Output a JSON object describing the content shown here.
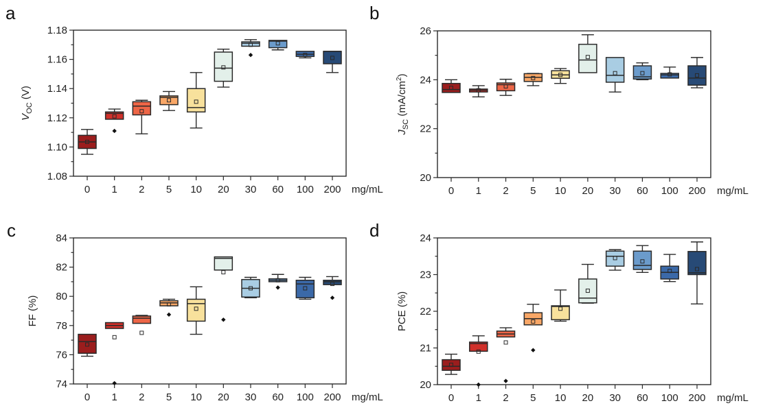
{
  "chart_data": [
    {
      "panel": "a",
      "type": "box",
      "categories": [
        "0",
        "1",
        "2",
        "5",
        "10",
        "20",
        "30",
        "60",
        "100",
        "200"
      ],
      "x_unit": "mg/mL",
      "ylabel_main": "V",
      "ylabel_sub": "OC",
      "ylabel_rest": " (V)",
      "ylim": [
        1.08,
        1.18
      ],
      "yticks": [
        1.08,
        1.1,
        1.12,
        1.14,
        1.16,
        1.18
      ],
      "ytick_labels": [
        "1.08",
        "1.10",
        "1.12",
        "1.14",
        "1.16",
        "1.18"
      ],
      "boxes": [
        {
          "wlo": 1.095,
          "q1": 1.099,
          "med": 1.1035,
          "q3": 1.108,
          "whi": 1.112,
          "mean": 1.1035,
          "outliers": []
        },
        {
          "wlo": null,
          "q1": 1.119,
          "med": 1.123,
          "q3": 1.124,
          "whi": 1.126,
          "mean": 1.121,
          "outliers": [
            1.111
          ]
        },
        {
          "wlo": 1.109,
          "q1": 1.122,
          "med": 1.128,
          "q3": 1.131,
          "whi": 1.132,
          "mean": 1.1245,
          "outliers": []
        },
        {
          "wlo": 1.125,
          "q1": 1.129,
          "med": 1.134,
          "q3": 1.135,
          "whi": 1.138,
          "mean": 1.132,
          "outliers": []
        },
        {
          "wlo": 1.113,
          "q1": 1.124,
          "med": 1.127,
          "q3": 1.14,
          "whi": 1.151,
          "mean": 1.131,
          "outliers": []
        },
        {
          "wlo": 1.141,
          "q1": 1.145,
          "med": 1.154,
          "q3": 1.165,
          "whi": 1.167,
          "mean": 1.1545,
          "outliers": []
        },
        {
          "wlo": null,
          "q1": 1.169,
          "med": 1.171,
          "q3": 1.172,
          "whi": 1.1735,
          "mean": 1.17,
          "outliers": [
            1.163
          ]
        },
        {
          "wlo": 1.1665,
          "q1": 1.168,
          "med": 1.1725,
          "q3": 1.173,
          "whi": null,
          "mean": 1.171,
          "outliers": []
        },
        {
          "wlo": 1.161,
          "q1": 1.162,
          "med": 1.1635,
          "q3": 1.1655,
          "whi": null,
          "mean": 1.163,
          "outliers": []
        },
        {
          "wlo": 1.151,
          "q1": 1.157,
          "med": 1.1655,
          "q3": 1.1655,
          "whi": null,
          "mean": 1.161,
          "outliers": []
        }
      ]
    },
    {
      "panel": "b",
      "type": "box",
      "categories": [
        "0",
        "1",
        "2",
        "5",
        "10",
        "20",
        "30",
        "60",
        "100",
        "200"
      ],
      "x_unit": "mg/mL",
      "ylabel_main": "J",
      "ylabel_sub": "SC",
      "ylabel_rest": " (mA/cm",
      "ylabel_sup": "2",
      "ylabel_end": ")",
      "ylim": [
        20,
        26
      ],
      "yticks": [
        20,
        22,
        24,
        26
      ],
      "ytick_labels": [
        "20",
        "22",
        "24",
        "26"
      ],
      "boxes": [
        {
          "wlo": null,
          "q1": 23.48,
          "med": 23.6,
          "q3": 23.85,
          "whi": 24.0,
          "mean": 23.67,
          "outliers": []
        },
        {
          "wlo": 23.3,
          "q1": 23.5,
          "med": 23.57,
          "q3": 23.62,
          "whi": 23.76,
          "mean": 23.57,
          "outliers": []
        },
        {
          "wlo": 23.36,
          "q1": 23.55,
          "med": 23.8,
          "q3": 23.87,
          "whi": 24.02,
          "mean": 23.73,
          "outliers": []
        },
        {
          "wlo": 23.76,
          "q1": 23.93,
          "med": 24.1,
          "q3": 24.25,
          "whi": 24.26,
          "mean": 24.07,
          "outliers": []
        },
        {
          "wlo": 23.85,
          "q1": 24.06,
          "med": 24.2,
          "q3": 24.37,
          "whi": 24.46,
          "mean": 24.2,
          "outliers": []
        },
        {
          "wlo": null,
          "q1": 24.29,
          "med": 24.81,
          "q3": 25.45,
          "whi": 25.84,
          "mean": 24.93,
          "outliers": []
        },
        {
          "wlo": 23.5,
          "q1": 23.9,
          "med": 24.18,
          "q3": 24.91,
          "whi": null,
          "mean": 24.27,
          "outliers": []
        },
        {
          "wlo": 24.0,
          "q1": 24.03,
          "med": 24.12,
          "q3": 24.57,
          "whi": 24.69,
          "mean": 24.27,
          "outliers": []
        },
        {
          "wlo": null,
          "q1": 24.07,
          "med": 24.2,
          "q3": 24.26,
          "whi": 24.52,
          "mean": 24.22,
          "outliers": []
        },
        {
          "wlo": 23.67,
          "q1": 23.78,
          "med": 24.07,
          "q3": 24.57,
          "whi": 24.91,
          "mean": 24.18,
          "outliers": []
        }
      ]
    },
    {
      "panel": "c",
      "type": "box",
      "categories": [
        "0",
        "1",
        "2",
        "5",
        "10",
        "20",
        "30",
        "60",
        "100",
        "200"
      ],
      "x_unit": "mg/mL",
      "ylabel_main": "FF (%)",
      "ylim": [
        74,
        84
      ],
      "yticks": [
        74,
        76,
        78,
        80,
        82,
        84
      ],
      "ytick_labels": [
        "74",
        "76",
        "78",
        "80",
        "82",
        "84"
      ],
      "boxes": [
        {
          "wlo": 75.9,
          "q1": 76.1,
          "med": 76.9,
          "q3": 77.4,
          "whi": null,
          "mean": 76.7,
          "outliers": []
        },
        {
          "wlo": null,
          "q1": 77.8,
          "med": 78.0,
          "q3": 78.2,
          "whi": null,
          "mean": 77.2,
          "outliers": [
            74.05
          ]
        },
        {
          "wlo": null,
          "q1": 78.15,
          "med": 78.5,
          "q3": 78.65,
          "whi": 78.7,
          "mean": 77.5,
          "outliers": []
        },
        {
          "wlo": null,
          "q1": 79.35,
          "med": 79.55,
          "q3": 79.7,
          "whi": 79.8,
          "mean": 79.45,
          "outliers": [
            78.75
          ]
        },
        {
          "wlo": 77.4,
          "q1": 78.3,
          "med": 79.5,
          "q3": 79.8,
          "whi": 80.65,
          "mean": 79.15,
          "outliers": []
        },
        {
          "wlo": null,
          "q1": 81.8,
          "med": 82.6,
          "q3": 82.7,
          "whi": null,
          "mean": 81.65,
          "outliers": [
            78.4
          ]
        },
        {
          "wlo": 79.9,
          "q1": 79.95,
          "med": 80.55,
          "q3": 81.15,
          "whi": 81.3,
          "mean": 80.55,
          "outliers": []
        },
        {
          "wlo": null,
          "q1": 81.0,
          "med": 81.1,
          "q3": 81.2,
          "whi": 81.5,
          "mean": 81.1,
          "outliers": [
            80.6
          ]
        },
        {
          "wlo": 79.8,
          "q1": 79.9,
          "med": 80.85,
          "q3": 81.1,
          "whi": 81.3,
          "mean": 80.55,
          "outliers": []
        },
        {
          "wlo": null,
          "q1": 80.8,
          "med": 81.0,
          "q3": 81.1,
          "whi": 81.35,
          "mean": 80.85,
          "outliers": [
            79.9
          ]
        }
      ]
    },
    {
      "panel": "d",
      "type": "box",
      "categories": [
        "0",
        "1",
        "2",
        "5",
        "10",
        "20",
        "30",
        "60",
        "100",
        "200"
      ],
      "x_unit": "mg/mL",
      "ylabel_main": "PCE (%)",
      "ylim": [
        20,
        24
      ],
      "yticks": [
        20,
        21,
        22,
        23,
        24
      ],
      "ytick_labels": [
        "20",
        "21",
        "22",
        "23",
        "24"
      ],
      "boxes": [
        {
          "wlo": 20.28,
          "q1": 20.39,
          "med": 20.5,
          "q3": 20.68,
          "whi": 20.83,
          "mean": 20.54,
          "outliers": []
        },
        {
          "wlo": null,
          "q1": 20.91,
          "med": 21.12,
          "q3": 21.16,
          "whi": 21.33,
          "mean": 20.9,
          "outliers": [
            20.0
          ]
        },
        {
          "wlo": null,
          "q1": 21.3,
          "med": 21.38,
          "q3": 21.46,
          "whi": 21.55,
          "mean": 21.15,
          "outliers": [
            20.1
          ]
        },
        {
          "wlo": null,
          "q1": 21.63,
          "med": 21.8,
          "q3": 21.96,
          "whi": 22.19,
          "mean": 21.72,
          "outliers": [
            20.94
          ]
        },
        {
          "wlo": 21.73,
          "q1": 21.77,
          "med": 22.13,
          "q3": 22.15,
          "whi": 22.58,
          "mean": 22.07,
          "outliers": []
        },
        {
          "wlo": 22.22,
          "q1": 22.23,
          "med": 22.36,
          "q3": 22.88,
          "whi": 23.28,
          "mean": 22.56,
          "outliers": []
        },
        {
          "wlo": 23.12,
          "q1": 23.23,
          "med": 23.5,
          "q3": 23.64,
          "whi": 23.68,
          "mean": 23.45,
          "outliers": []
        },
        {
          "wlo": 23.06,
          "q1": 23.14,
          "med": 23.25,
          "q3": 23.64,
          "whi": 23.79,
          "mean": 23.36,
          "outliers": []
        },
        {
          "wlo": 22.81,
          "q1": 22.88,
          "med": 23.06,
          "q3": 23.23,
          "whi": 23.55,
          "mean": 23.1,
          "outliers": []
        },
        {
          "wlo": 22.2,
          "q1": 23.0,
          "med": 23.05,
          "q3": 23.63,
          "whi": 23.89,
          "mean": 23.15,
          "outliers": []
        }
      ]
    }
  ],
  "palette": [
    "#9b1d1d",
    "#d0302a",
    "#ee6647",
    "#f9a767",
    "#f8e19c",
    "#e3f0ea",
    "#a9cde3",
    "#6b9bcb",
    "#3b69a8",
    "#274a76"
  ],
  "panel_letters": [
    "a",
    "b",
    "c",
    "d"
  ]
}
